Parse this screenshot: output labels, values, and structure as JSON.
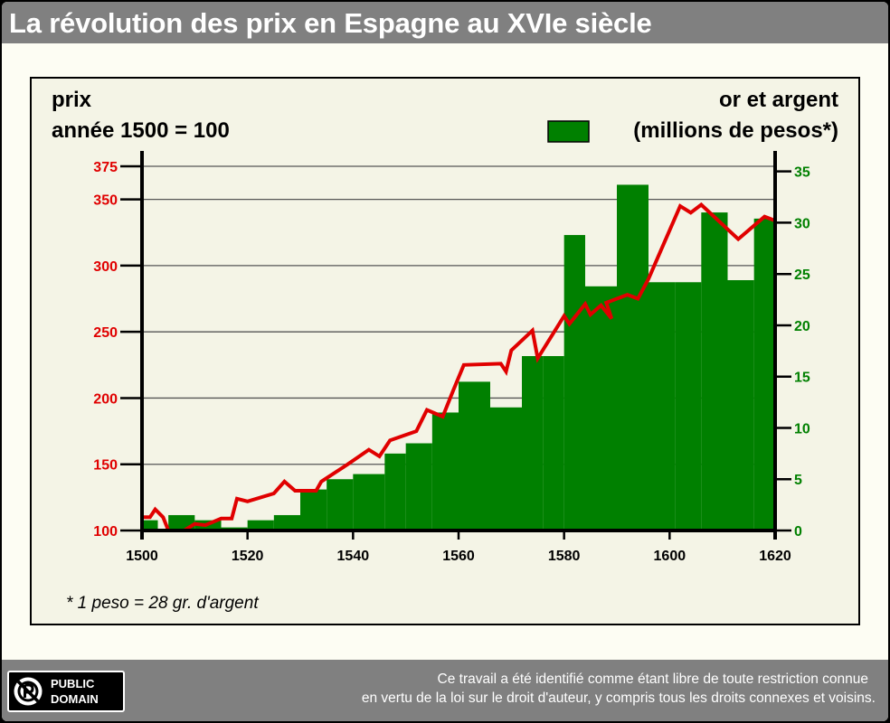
{
  "title": "La révolution des prix en Espagne au XVIe siècle",
  "footer": {
    "line1": "Ce travail a été identifié comme étant libre de toute restriction connue",
    "line2": "en vertu de la loi sur le droit d'auteur, y compris tous les droits connexes et voisins.",
    "badge_line1": "PUBLIC",
    "badge_line2": "DOMAIN",
    "badge_icon": "public-domain-icon"
  },
  "colors": {
    "price_line": "#e00000",
    "bars": "#008000",
    "left_ticks": "#e00000",
    "right_ticks": "#008000"
  },
  "chart_data": {
    "type": "bar+line",
    "left_axis_label_1": "prix",
    "left_axis_label_2": "année 1500 = 100",
    "right_axis_label_1": "or et argent",
    "right_axis_label_2": "(millions de pesos*)",
    "footnote": "* 1 peso = 28 gr. d'argent",
    "x_ticks": [
      1500,
      1520,
      1540,
      1560,
      1580,
      1600,
      1620
    ],
    "xlim": [
      1500,
      1620
    ],
    "left_ticks": [
      100,
      150,
      200,
      250,
      300,
      350,
      375
    ],
    "left_ylim": [
      100,
      375
    ],
    "right_ticks": [
      0,
      5,
      10,
      15,
      20,
      25,
      30,
      35
    ],
    "right_ylim": [
      0,
      35.5
    ],
    "grid": true,
    "gold_silver_bars": [
      {
        "from": 1500,
        "to": 1503,
        "value": 1.0
      },
      {
        "from": 1503,
        "to": 1505,
        "value": 0.0
      },
      {
        "from": 1505,
        "to": 1510,
        "value": 1.5
      },
      {
        "from": 1510,
        "to": 1515,
        "value": 1.0
      },
      {
        "from": 1515,
        "to": 1520,
        "value": 0.3
      },
      {
        "from": 1520,
        "to": 1525,
        "value": 1.0
      },
      {
        "from": 1525,
        "to": 1530,
        "value": 1.5
      },
      {
        "from": 1530,
        "to": 1535,
        "value": 4.0
      },
      {
        "from": 1535,
        "to": 1540,
        "value": 5.0
      },
      {
        "from": 1540,
        "to": 1546,
        "value": 5.5
      },
      {
        "from": 1546,
        "to": 1550,
        "value": 7.5
      },
      {
        "from": 1550,
        "to": 1555,
        "value": 8.5
      },
      {
        "from": 1555,
        "to": 1560,
        "value": 11.5
      },
      {
        "from": 1560,
        "to": 1566,
        "value": 14.5
      },
      {
        "from": 1566,
        "to": 1572,
        "value": 12.0
      },
      {
        "from": 1572,
        "to": 1576,
        "value": 17.0
      },
      {
        "from": 1576,
        "to": 1580,
        "value": 17.0
      },
      {
        "from": 1580,
        "to": 1584,
        "value": 28.8
      },
      {
        "from": 1584,
        "to": 1590,
        "value": 23.8
      },
      {
        "from": 1590,
        "to": 1596,
        "value": 33.7
      },
      {
        "from": 1596,
        "to": 1601,
        "value": 24.2
      },
      {
        "from": 1601,
        "to": 1606,
        "value": 24.2
      },
      {
        "from": 1606,
        "to": 1611,
        "value": 31.0
      },
      {
        "from": 1611,
        "to": 1616,
        "value": 24.4
      },
      {
        "from": 1616,
        "to": 1620,
        "value": 30.4
      }
    ],
    "price_index": [
      {
        "x": 1500,
        "y": 110
      },
      {
        "x": 1501.5,
        "y": 110
      },
      {
        "x": 1502.5,
        "y": 116
      },
      {
        "x": 1504,
        "y": 110
      },
      {
        "x": 1505,
        "y": 100
      },
      {
        "x": 1508,
        "y": 100
      },
      {
        "x": 1510,
        "y": 105
      },
      {
        "x": 1512,
        "y": 104
      },
      {
        "x": 1515,
        "y": 109
      },
      {
        "x": 1517,
        "y": 109
      },
      {
        "x": 1518,
        "y": 124
      },
      {
        "x": 1520,
        "y": 122
      },
      {
        "x": 1525,
        "y": 128
      },
      {
        "x": 1527,
        "y": 137
      },
      {
        "x": 1529,
        "y": 130
      },
      {
        "x": 1533,
        "y": 130
      },
      {
        "x": 1534,
        "y": 137
      },
      {
        "x": 1539,
        "y": 150
      },
      {
        "x": 1543,
        "y": 161
      },
      {
        "x": 1545,
        "y": 156
      },
      {
        "x": 1547,
        "y": 168
      },
      {
        "x": 1552,
        "y": 175
      },
      {
        "x": 1554,
        "y": 191
      },
      {
        "x": 1557,
        "y": 186
      },
      {
        "x": 1559,
        "y": 206
      },
      {
        "x": 1561,
        "y": 225
      },
      {
        "x": 1568,
        "y": 226
      },
      {
        "x": 1569,
        "y": 220
      },
      {
        "x": 1570,
        "y": 236
      },
      {
        "x": 1574,
        "y": 251
      },
      {
        "x": 1575,
        "y": 230
      },
      {
        "x": 1580,
        "y": 262
      },
      {
        "x": 1581,
        "y": 256
      },
      {
        "x": 1584,
        "y": 271
      },
      {
        "x": 1585,
        "y": 263
      },
      {
        "x": 1587,
        "y": 270
      },
      {
        "x": 1589,
        "y": 260
      },
      {
        "x": 1588,
        "y": 272
      },
      {
        "x": 1592,
        "y": 278
      },
      {
        "x": 1594,
        "y": 275
      },
      {
        "x": 1596,
        "y": 290
      },
      {
        "x": 1602,
        "y": 345
      },
      {
        "x": 1604,
        "y": 340
      },
      {
        "x": 1606,
        "y": 346
      },
      {
        "x": 1613,
        "y": 320
      },
      {
        "x": 1618,
        "y": 337
      },
      {
        "x": 1620,
        "y": 334
      }
    ]
  }
}
